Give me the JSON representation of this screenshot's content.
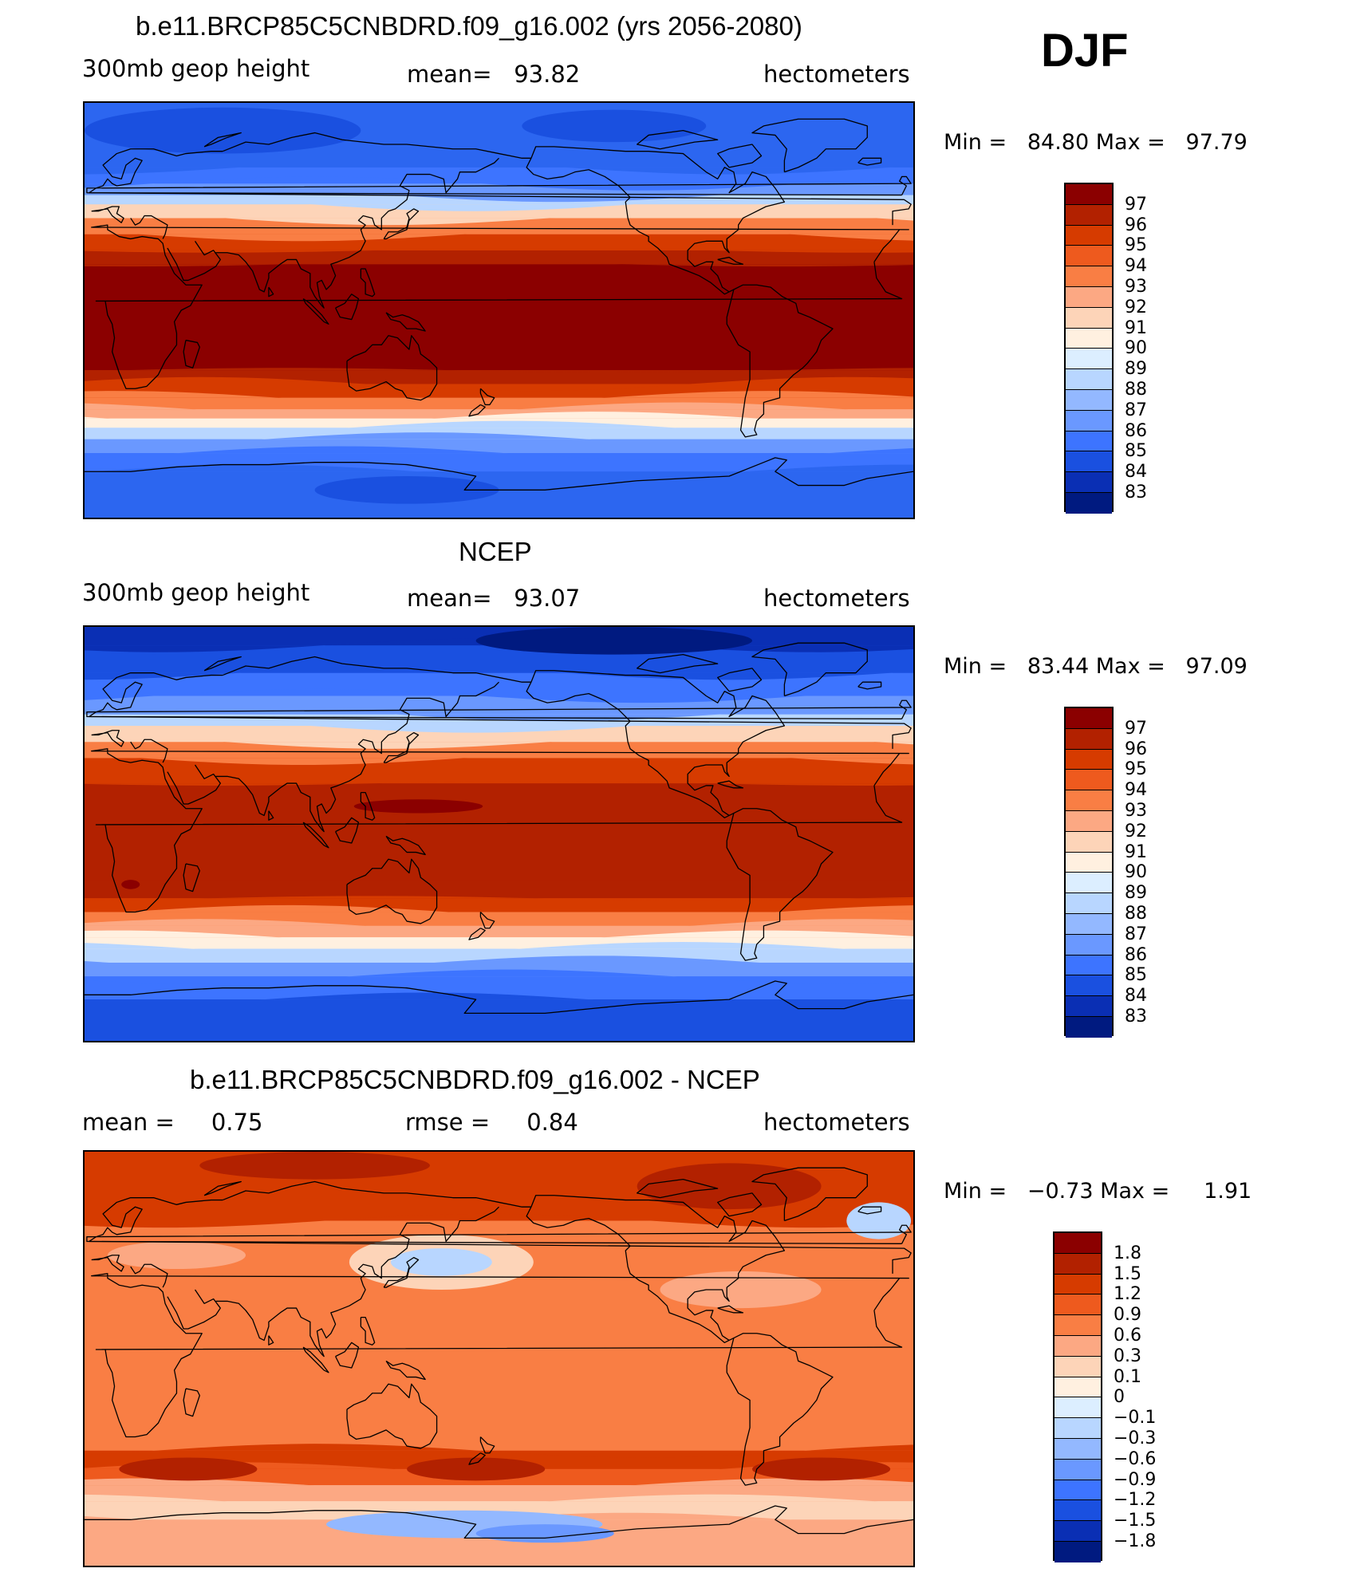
{
  "season": "DJF",
  "panels": [
    {
      "id": "model",
      "title": "b.e11.BRCP85C5CNBDRD.f09_g16.002 (yrs 2056-2080)",
      "left_label": "300mb geop height",
      "center_label": "mean=   93.82",
      "right_label": "hectometers",
      "minmax": "Min =   84.80 Max =   97.79",
      "colorbar": {
        "labels": [
          "97",
          "96",
          "95",
          "94",
          "93",
          "92",
          "91",
          "90",
          "89",
          "88",
          "87",
          "86",
          "85",
          "84",
          "83"
        ],
        "colors": [
          "#8b0000",
          "#b22100",
          "#d63b00",
          "#ee5a1e",
          "#f97e44",
          "#fca883",
          "#fdd4b8",
          "#fff0e0",
          "#dceeff",
          "#b8d6ff",
          "#93b8ff",
          "#6a98ff",
          "#3d74ff",
          "#1a50e0",
          "#0a2fb4",
          "#001a80"
        ]
      },
      "map": {
        "bands": [
          {
            "lat": 90,
            "color": "#2c66f0"
          },
          {
            "lat": 72,
            "color": "#2c66f0"
          },
          {
            "lat": 62,
            "color": "#3d74ff"
          },
          {
            "lat": 55,
            "color": "#6a98ff"
          },
          {
            "lat": 50,
            "color": "#b8d6ff"
          },
          {
            "lat": 46,
            "color": "#fdd4b8"
          },
          {
            "lat": 40,
            "color": "#f97e44"
          },
          {
            "lat": 33,
            "color": "#d63b00"
          },
          {
            "lat": 26,
            "color": "#b22100"
          },
          {
            "lat": 20,
            "color": "#8b0000"
          },
          {
            "lat": -20,
            "color": "#8b0000"
          },
          {
            "lat": -26,
            "color": "#b22100"
          },
          {
            "lat": -32,
            "color": "#d63b00"
          },
          {
            "lat": -38,
            "color": "#f97e44"
          },
          {
            "lat": -43,
            "color": "#fca883"
          },
          {
            "lat": -47,
            "color": "#fff0e0"
          },
          {
            "lat": -51,
            "color": "#b8d6ff"
          },
          {
            "lat": -56,
            "color": "#6a98ff"
          },
          {
            "lat": -62,
            "color": "#3d74ff"
          },
          {
            "lat": -70,
            "color": "#2c66f0"
          },
          {
            "lat": -90,
            "color": "#2c66f0"
          }
        ],
        "blobs": [
          {
            "lon": 60,
            "lat": 78,
            "rx": 60,
            "ry": 10,
            "color": "#1a50e0"
          },
          {
            "lon": 230,
            "lat": 80,
            "rx": 40,
            "ry": 7,
            "color": "#1a50e0"
          },
          {
            "lon": 140,
            "lat": -78,
            "rx": 40,
            "ry": 6,
            "color": "#1a50e0"
          }
        ]
      }
    },
    {
      "id": "obs",
      "title": "NCEP",
      "left_label": "300mb geop height",
      "center_label": "mean=   93.07",
      "right_label": "hectometers",
      "minmax": "Min =   83.44 Max =   97.09",
      "colorbar": {
        "labels": [
          "97",
          "96",
          "95",
          "94",
          "93",
          "92",
          "91",
          "90",
          "89",
          "88",
          "87",
          "86",
          "85",
          "84",
          "83"
        ],
        "colors": [
          "#8b0000",
          "#b22100",
          "#d63b00",
          "#ee5a1e",
          "#f97e44",
          "#fca883",
          "#fdd4b8",
          "#fff0e0",
          "#dceeff",
          "#b8d6ff",
          "#93b8ff",
          "#6a98ff",
          "#3d74ff",
          "#1a50e0",
          "#0a2fb4",
          "#001a80"
        ]
      },
      "map": {
        "bands": [
          {
            "lat": 90,
            "color": "#0a2fb4"
          },
          {
            "lat": 82,
            "color": "#1a50e0"
          },
          {
            "lat": 70,
            "color": "#3d74ff"
          },
          {
            "lat": 60,
            "color": "#6a98ff"
          },
          {
            "lat": 52,
            "color": "#b8d6ff"
          },
          {
            "lat": 47,
            "color": "#fdd4b8"
          },
          {
            "lat": 40,
            "color": "#f97e44"
          },
          {
            "lat": 33,
            "color": "#d63b00"
          },
          {
            "lat": 22,
            "color": "#b22100"
          },
          {
            "lat": -20,
            "color": "#b22100"
          },
          {
            "lat": -28,
            "color": "#d63b00"
          },
          {
            "lat": -34,
            "color": "#f97e44"
          },
          {
            "lat": -40,
            "color": "#fca883"
          },
          {
            "lat": -45,
            "color": "#fff0e0"
          },
          {
            "lat": -50,
            "color": "#b8d6ff"
          },
          {
            "lat": -56,
            "color": "#6a98ff"
          },
          {
            "lat": -62,
            "color": "#3d74ff"
          },
          {
            "lat": -72,
            "color": "#1a50e0"
          },
          {
            "lat": -90,
            "color": "#1a50e0"
          }
        ],
        "blobs": [
          {
            "lon": 145,
            "lat": 12,
            "rx": 28,
            "ry": 3,
            "color": "#8b0000"
          },
          {
            "lon": 20,
            "lat": -22,
            "rx": 4,
            "ry": 2,
            "color": "#8b0000"
          },
          {
            "lon": 230,
            "lat": 84,
            "rx": 60,
            "ry": 6,
            "color": "#001a80"
          }
        ]
      }
    },
    {
      "id": "diff",
      "title": "b.e11.BRCP85C5CNBDRD.f09_g16.002 - NCEP",
      "left_label": "mean =     0.75",
      "center_label": "rmse =     0.84",
      "right_label": "hectometers",
      "minmax": "Min =   −0.73 Max =     1.91",
      "colorbar": {
        "labels": [
          "1.8",
          "1.5",
          "1.2",
          "0.9",
          "0.6",
          "0.3",
          "0.1",
          "0",
          "−0.1",
          "−0.3",
          "−0.6",
          "−0.9",
          "−1.2",
          "−1.5",
          "−1.8"
        ],
        "colors": [
          "#8b0000",
          "#b22100",
          "#d63b00",
          "#ee5a1e",
          "#f97e44",
          "#fca883",
          "#fdd4b8",
          "#fff0e0",
          "#dceeff",
          "#b8d6ff",
          "#93b8ff",
          "#6a98ff",
          "#3d74ff",
          "#1a50e0",
          "#0a2fb4",
          "#001a80"
        ]
      },
      "map": {
        "bands": [
          {
            "lat": 90,
            "color": "#d63b00"
          },
          {
            "lat": 60,
            "color": "#f97e44"
          },
          {
            "lat": -35,
            "color": "#f97e44"
          },
          {
            "lat": -40,
            "color": "#d63b00"
          },
          {
            "lat": -48,
            "color": "#ee5a1e"
          },
          {
            "lat": -55,
            "color": "#fca883"
          },
          {
            "lat": -62,
            "color": "#fdd4b8"
          },
          {
            "lat": -70,
            "color": "#fca883"
          },
          {
            "lat": -90,
            "color": "#fca883"
          }
        ],
        "blobs": [
          {
            "lon": 100,
            "lat": 84,
            "rx": 50,
            "ry": 6,
            "color": "#b22100"
          },
          {
            "lon": 280,
            "lat": 75,
            "rx": 40,
            "ry": 10,
            "color": "#b22100"
          },
          {
            "lon": 155,
            "lat": 42,
            "rx": 40,
            "ry": 12,
            "color": "#fdd4b8"
          },
          {
            "lon": 155,
            "lat": 42,
            "rx": 22,
            "ry": 6,
            "color": "#b8d6ff"
          },
          {
            "lon": 345,
            "lat": 60,
            "rx": 14,
            "ry": 8,
            "color": "#b8d6ff"
          },
          {
            "lon": 40,
            "lat": 45,
            "rx": 30,
            "ry": 6,
            "color": "#fca883"
          },
          {
            "lon": 285,
            "lat": 30,
            "rx": 35,
            "ry": 8,
            "color": "#fca883"
          },
          {
            "lon": 45,
            "lat": -48,
            "rx": 30,
            "ry": 5,
            "color": "#b22100"
          },
          {
            "lon": 170,
            "lat": -48,
            "rx": 30,
            "ry": 5,
            "color": "#b22100"
          },
          {
            "lon": 320,
            "lat": -48,
            "rx": 30,
            "ry": 5,
            "color": "#b22100"
          },
          {
            "lon": 165,
            "lat": -72,
            "rx": 60,
            "ry": 6,
            "color": "#93b8ff"
          },
          {
            "lon": 200,
            "lat": -76,
            "rx": 30,
            "ry": 4,
            "color": "#6a98ff"
          }
        ]
      }
    }
  ]
}
